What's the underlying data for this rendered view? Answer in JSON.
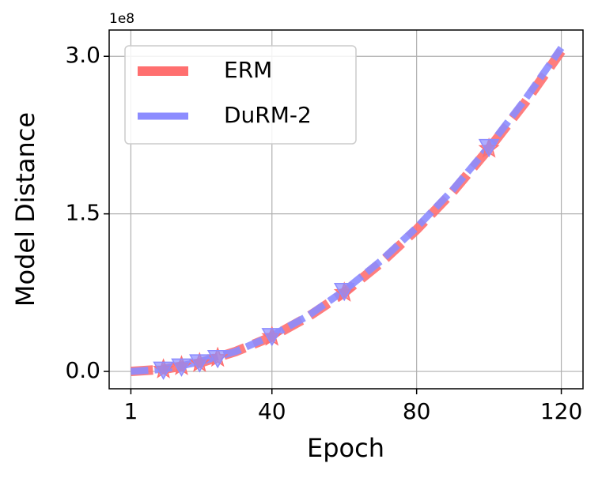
{
  "chart_data": {
    "type": "line",
    "offset_label": "1e8",
    "xlabel": "Epoch",
    "ylabel": "Model Distance",
    "xlim": [
      -5,
      126
    ],
    "ylim": [
      -0.165,
      3.25
    ],
    "xticks": [
      1,
      40,
      80,
      120
    ],
    "yticks": [
      {
        "value": 0,
        "label": "0.0"
      },
      1.5,
      {
        "value": 3,
        "label": "3.0"
      }
    ],
    "grid": true,
    "legend": "upper left",
    "series": [
      {
        "name": "ERM",
        "color": "#ff6f6f",
        "x": [
          1,
          10,
          20,
          30,
          40,
          50,
          60,
          70,
          80,
          90,
          100,
          110,
          120
        ],
        "values": [
          0.0,
          0.02,
          0.08,
          0.19,
          0.33,
          0.52,
          0.75,
          1.03,
          1.35,
          1.71,
          2.12,
          2.56,
          3.05
        ],
        "marker_x": [
          10,
          15,
          20,
          25,
          40,
          60,
          100
        ],
        "marker_values": [
          0.02,
          0.05,
          0.08,
          0.13,
          0.33,
          0.75,
          2.12
        ]
      },
      {
        "name": "DuRM-2",
        "color": "#8c8cff",
        "x": [
          1,
          10,
          20,
          30,
          40,
          50,
          60,
          70,
          80,
          90,
          100,
          110,
          120
        ],
        "values": [
          0.0,
          0.02,
          0.09,
          0.19,
          0.34,
          0.53,
          0.77,
          1.05,
          1.37,
          1.73,
          2.14,
          2.59,
          3.08
        ],
        "marker_x": [
          10,
          15,
          20,
          25,
          40,
          60,
          100
        ],
        "marker_values": [
          0.02,
          0.05,
          0.09,
          0.13,
          0.34,
          0.77,
          2.14
        ]
      }
    ]
  }
}
